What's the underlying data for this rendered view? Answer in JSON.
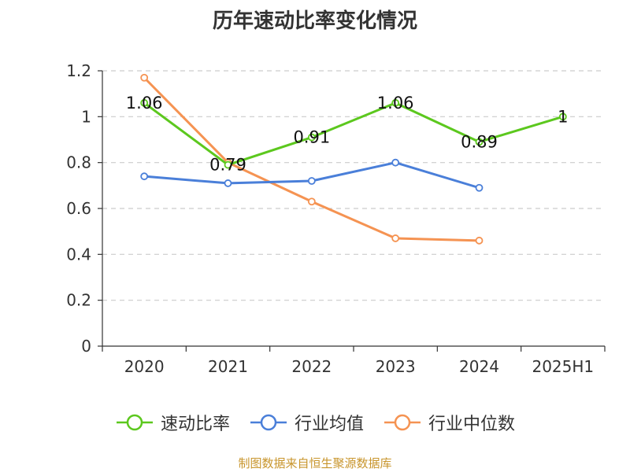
{
  "chart_data": {
    "type": "line",
    "title": "历年速动比率变化情况",
    "categories": [
      "2020",
      "2021",
      "2022",
      "2023",
      "2024",
      "2025H1"
    ],
    "ylim": [
      0,
      1.2
    ],
    "yticks": [
      "0",
      "0.2",
      "0.4",
      "0.6",
      "0.8",
      "1",
      "1.2"
    ],
    "grid": true,
    "legend_position": "bottom",
    "series": [
      {
        "name": "速动比率",
        "color": "#5cc81e",
        "values": [
          1.06,
          0.79,
          0.91,
          1.06,
          0.89,
          1
        ],
        "labels": [
          "1.06",
          "0.79",
          "0.91",
          "1.06",
          "0.89",
          "1"
        ]
      },
      {
        "name": "行业均值",
        "color": "#4a7fd9",
        "values": [
          0.74,
          0.71,
          0.72,
          0.8,
          0.69,
          null
        ]
      },
      {
        "name": "行业中位数",
        "color": "#f59352",
        "values": [
          1.17,
          0.8,
          0.63,
          0.47,
          0.46,
          null
        ]
      }
    ]
  },
  "source_text": "制图数据来自恒生聚源数据库"
}
